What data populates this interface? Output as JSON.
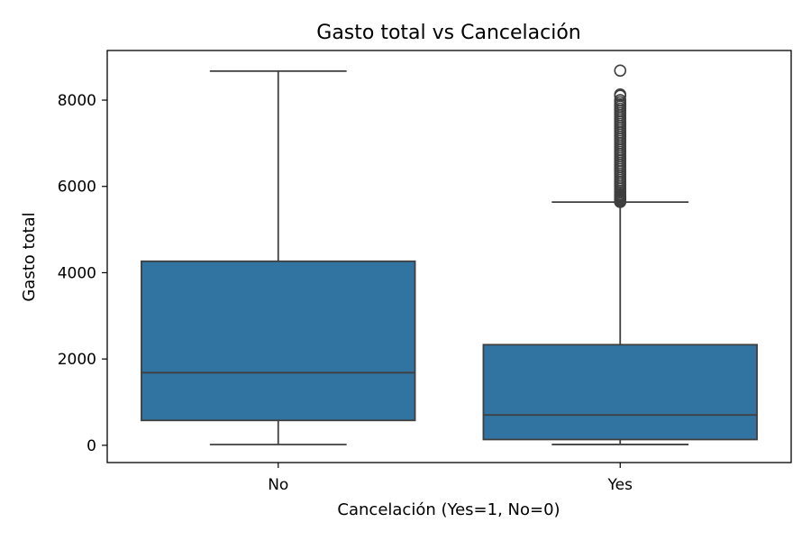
{
  "chart_data": {
    "type": "boxplot",
    "title": "Gasto total vs Cancelación",
    "xlabel": "Cancelación (Yes=1, No=0)",
    "ylabel": "Gasto total",
    "categories": [
      "No",
      "Yes"
    ],
    "ylim": [
      -400,
      9150
    ],
    "yticks": [
      0,
      2000,
      4000,
      6000,
      8000
    ],
    "grid": false,
    "legend": "none",
    "box_color": "#3274a1",
    "line_color": "#3f3f3f",
    "boxes": [
      {
        "category": "No",
        "whisker_low": 18,
        "q1": 577,
        "median": 1683,
        "q3": 4265,
        "whisker_high": 8672,
        "outliers": []
      },
      {
        "category": "Yes",
        "whisker_low": 19,
        "q1": 134,
        "median": 703,
        "q3": 2331,
        "whisker_high": 5636,
        "outliers": [
          5640,
          5660,
          5680,
          5700,
          5730,
          5760,
          5790,
          5820,
          5860,
          5900,
          5950,
          6000,
          6050,
          6100,
          6150,
          6200,
          6250,
          6300,
          6350,
          6400,
          6450,
          6500,
          6550,
          6600,
          6650,
          6700,
          6750,
          6800,
          6850,
          6900,
          6950,
          7000,
          7050,
          7100,
          7150,
          7200,
          7250,
          7300,
          7350,
          7400,
          7450,
          7500,
          7550,
          7600,
          7650,
          7700,
          7750,
          7800,
          7850,
          7900,
          7950,
          8000,
          8100,
          8130,
          8684
        ]
      }
    ]
  }
}
